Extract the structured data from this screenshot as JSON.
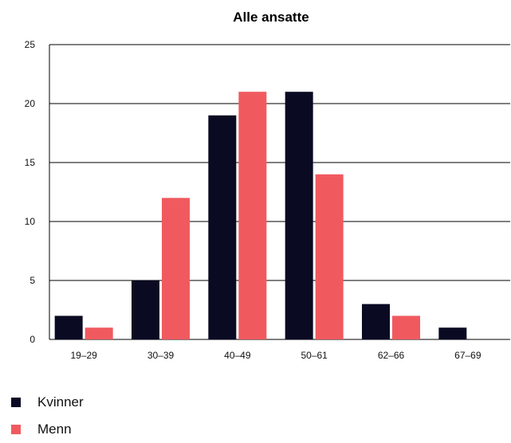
{
  "chart_data": {
    "type": "bar",
    "title": "Alle ansatte",
    "categories": [
      "19–29",
      "30–39",
      "40–49",
      "50–61",
      "62–66",
      "67–69"
    ],
    "series": [
      {
        "name": "Kvinner",
        "values": [
          2,
          5,
          19,
          21,
          3,
          1
        ],
        "color": "#0a0a23"
      },
      {
        "name": "Menn",
        "values": [
          1,
          12,
          21,
          14,
          2,
          0
        ],
        "color": "#f05a5f"
      }
    ],
    "yticks": [
      "0",
      "5",
      "10",
      "15",
      "20",
      "25"
    ],
    "ylim": [
      0,
      25
    ],
    "grid": true,
    "legend_position": "bottom-left"
  }
}
